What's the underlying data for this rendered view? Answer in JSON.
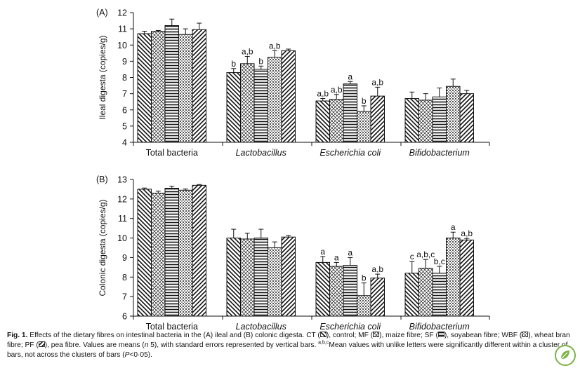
{
  "colors": {
    "axis": "#111111",
    "bar_fill": "#ffffff",
    "badge_ring": "#7cb342",
    "badge_leaf": "#7cb342"
  },
  "series_patterns": [
    "diagonal-back",
    "crosshatch-light",
    "horizontal-stripes",
    "checker-grid",
    "diagonal-forward"
  ],
  "chart_data": [
    {
      "type": "bar",
      "panel_label": "(A)",
      "ylabel": "Ileal digesta (copies/g)",
      "ylim": [
        4,
        12
      ],
      "yticks": [
        "4",
        "5",
        "6",
        "7",
        "8",
        "9",
        "10",
        "11",
        "12"
      ],
      "categories": [
        "Total bacteria",
        "Lactobacillus",
        "Escherichia coli",
        "Bifidobacterium"
      ],
      "category_italic": [
        false,
        true,
        true,
        true
      ],
      "series": [
        {
          "values": [
            10.7,
            8.3,
            6.55,
            6.7
          ],
          "errors": [
            0.15,
            0.25,
            0.15,
            0.4
          ],
          "letters": [
            "",
            "b",
            "a,b",
            ""
          ]
        },
        {
          "values": [
            10.85,
            8.85,
            6.65,
            6.6
          ],
          "errors": [
            0.05,
            0.45,
            0.3,
            0.4
          ],
          "letters": [
            "",
            "a,b",
            "a,b",
            ""
          ]
        },
        {
          "values": [
            11.2,
            8.5,
            7.6,
            6.8
          ],
          "errors": [
            0.4,
            0.2,
            0.15,
            0.55
          ],
          "letters": [
            "",
            "b",
            "a",
            ""
          ]
        },
        {
          "values": [
            10.65,
            9.25,
            5.9,
            7.45
          ],
          "errors": [
            0.35,
            0.4,
            0.35,
            0.45
          ],
          "letters": [
            "",
            "a,b",
            "b",
            ""
          ]
        },
        {
          "values": [
            10.95,
            9.65,
            6.85,
            7.0
          ],
          "errors": [
            0.4,
            0.1,
            0.55,
            0.2
          ],
          "letters": [
            "",
            "",
            "a,b",
            ""
          ]
        }
      ]
    },
    {
      "type": "bar",
      "panel_label": "(B)",
      "ylabel": "Colonic digesta (copies/g)",
      "ylim": [
        6,
        13
      ],
      "yticks": [
        "6",
        "7",
        "8",
        "9",
        "10",
        "11",
        "12",
        "13"
      ],
      "categories": [
        "Total bacteria",
        "Lactobacillus",
        "Escherichia coli",
        "Bifidobacterium"
      ],
      "category_italic": [
        false,
        true,
        true,
        true
      ],
      "series": [
        {
          "values": [
            12.5,
            10.0,
            8.75,
            8.2
          ],
          "errors": [
            0.06,
            0.45,
            0.3,
            0.6
          ],
          "letters": [
            "",
            "",
            "a",
            "c"
          ]
        },
        {
          "values": [
            12.3,
            9.95,
            8.55,
            8.45
          ],
          "errors": [
            0.1,
            0.3,
            0.2,
            0.45
          ],
          "letters": [
            "",
            "",
            "a",
            "a,b,c"
          ]
        },
        {
          "values": [
            12.55,
            10.0,
            8.6,
            8.2
          ],
          "errors": [
            0.1,
            0.45,
            0.4,
            0.35
          ],
          "letters": [
            "",
            "",
            "a",
            "b,c"
          ]
        },
        {
          "values": [
            12.45,
            9.5,
            7.05,
            10.0
          ],
          "errors": [
            0.06,
            0.3,
            0.65,
            0.3
          ],
          "letters": [
            "",
            "",
            "b",
            "a"
          ]
        },
        {
          "values": [
            12.7,
            10.05,
            7.95,
            9.9
          ],
          "errors": [
            0.04,
            0.08,
            0.2,
            0.08
          ],
          "letters": [
            "",
            "",
            "a,b",
            "a,b"
          ]
        }
      ]
    }
  ],
  "caption": {
    "fig_label": "Fig. 1.",
    "text_part1": " Effects of the dietary fibres on intestinal bacteria in the (A) ileal and (B) colonic digesta. CT (",
    "text_part2": "), control; MF (",
    "text_part3": "), maize fibre; SF (",
    "text_part4": "), soyabean fibre; WBF (",
    "text_part5": "), wheat bran fibre; PF (",
    "text_part6": "), pea fibre. Values are means (",
    "n_label": "n",
    "text_part7": " 5), with standard errors represented by vertical bars. ",
    "superscript": "a,b,c",
    "text_part8": "Mean values with unlike letters were significantly different within a cluster of bars, not across the clusters of bars (",
    "p_label": "P",
    "text_part9": "<0·05)."
  }
}
